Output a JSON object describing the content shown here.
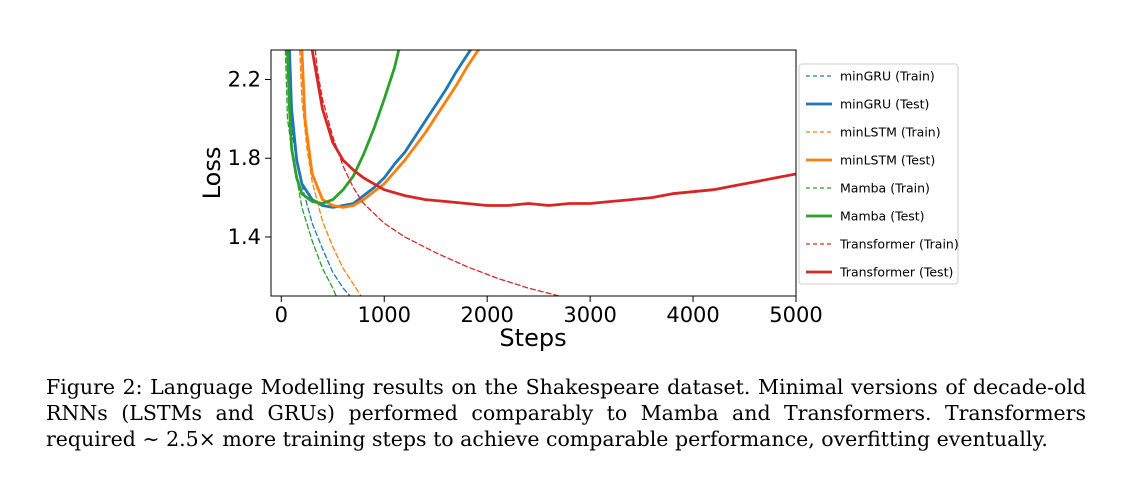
{
  "chart_data": {
    "type": "line",
    "title": "",
    "xlabel": "Steps",
    "ylabel": "Loss",
    "xlim": [
      -100,
      5000
    ],
    "ylim": [
      1.1,
      2.35
    ],
    "xticks": [
      0,
      1000,
      2000,
      3000,
      4000,
      5000
    ],
    "xtick_labels": [
      "0",
      "1000",
      "2000",
      "3000",
      "4000",
      "5000"
    ],
    "yticks": [
      1.4,
      1.8,
      2.2
    ],
    "ytick_labels": [
      "1.4",
      "1.8",
      "2.2"
    ],
    "grid": false,
    "legend_position": "right",
    "series": [
      {
        "name": "minGRU (Train)",
        "color": "#1f77b4",
        "style": "dashed",
        "x": [
          50,
          100,
          150,
          200,
          300,
          400,
          500,
          600,
          700
        ],
        "y": [
          2.35,
          1.95,
          1.78,
          1.66,
          1.47,
          1.34,
          1.22,
          1.14,
          1.08
        ]
      },
      {
        "name": "minGRU (Test)",
        "color": "#1f77b4",
        "style": "solid",
        "x": [
          80,
          100,
          150,
          200,
          300,
          400,
          500,
          600,
          700,
          800,
          900,
          1000,
          1100,
          1200,
          1300,
          1400,
          1500,
          1600,
          1700,
          1800,
          1900
        ],
        "y": [
          2.35,
          2.05,
          1.79,
          1.67,
          1.59,
          1.56,
          1.55,
          1.56,
          1.57,
          1.61,
          1.65,
          1.7,
          1.77,
          1.83,
          1.91,
          1.99,
          2.07,
          2.15,
          2.24,
          2.32,
          2.4
        ]
      },
      {
        "name": "minLSTM (Train)",
        "color": "#ff7f0e",
        "style": "dashed",
        "x": [
          180,
          200,
          250,
          300,
          400,
          500,
          600,
          700,
          800
        ],
        "y": [
          2.35,
          2.1,
          1.85,
          1.68,
          1.48,
          1.35,
          1.24,
          1.16,
          1.08
        ]
      },
      {
        "name": "minLSTM (Test)",
        "color": "#ff7f0e",
        "style": "solid",
        "x": [
          200,
          230,
          300,
          400,
          500,
          600,
          700,
          800,
          900,
          1000,
          1100,
          1200,
          1300,
          1400,
          1500,
          1600,
          1700,
          1800,
          1900,
          2000
        ],
        "y": [
          2.35,
          2.0,
          1.72,
          1.59,
          1.56,
          1.55,
          1.56,
          1.59,
          1.63,
          1.67,
          1.73,
          1.79,
          1.86,
          1.93,
          2.01,
          2.09,
          2.17,
          2.26,
          2.34,
          2.4
        ]
      },
      {
        "name": "Mamba (Train)",
        "color": "#2ca02c",
        "style": "dashed",
        "x": [
          40,
          60,
          100,
          150,
          200,
          300,
          400,
          500,
          550
        ],
        "y": [
          2.35,
          2.0,
          1.85,
          1.7,
          1.55,
          1.38,
          1.24,
          1.14,
          1.08
        ]
      },
      {
        "name": "Mamba (Test)",
        "color": "#2ca02c",
        "style": "solid",
        "x": [
          60,
          80,
          100,
          150,
          200,
          300,
          400,
          500,
          600,
          700,
          800,
          900,
          1000,
          1100,
          1150
        ],
        "y": [
          2.35,
          2.05,
          1.85,
          1.7,
          1.62,
          1.58,
          1.57,
          1.59,
          1.64,
          1.71,
          1.82,
          1.95,
          2.1,
          2.26,
          2.37
        ]
      },
      {
        "name": "Transformer (Train)",
        "color": "#d62728",
        "style": "dashed",
        "x": [
          330,
          350,
          400,
          500,
          600,
          700,
          800,
          1000,
          1200,
          1500,
          1800,
          2100,
          2400,
          2700,
          2900
        ],
        "y": [
          2.35,
          2.25,
          2.1,
          1.91,
          1.76,
          1.65,
          1.57,
          1.47,
          1.4,
          1.32,
          1.25,
          1.19,
          1.14,
          1.1,
          1.06
        ]
      },
      {
        "name": "Transformer (Test)",
        "color": "#d62728",
        "style": "solid",
        "x": [
          300,
          350,
          400,
          500,
          600,
          700,
          800,
          900,
          1000,
          1200,
          1400,
          1600,
          1800,
          2000,
          2200,
          2400,
          2600,
          2800,
          3000,
          3200,
          3400,
          3600,
          3800,
          4000,
          4200,
          4400,
          4600,
          4800,
          5000
        ],
        "y": [
          2.35,
          2.2,
          2.05,
          1.88,
          1.79,
          1.74,
          1.7,
          1.67,
          1.64,
          1.61,
          1.59,
          1.58,
          1.57,
          1.56,
          1.56,
          1.57,
          1.56,
          1.57,
          1.57,
          1.58,
          1.59,
          1.6,
          1.62,
          1.63,
          1.64,
          1.66,
          1.68,
          1.7,
          1.72
        ]
      }
    ]
  },
  "caption": "Figure 2: Language Modelling results on the Shakespeare dataset. Minimal versions of decade-old RNNs (LSTMs and GRUs) performed comparably to Mamba and Transformers. Transformers required ∼ 2.5× more training steps to achieve comparable performance, overfitting eventually."
}
